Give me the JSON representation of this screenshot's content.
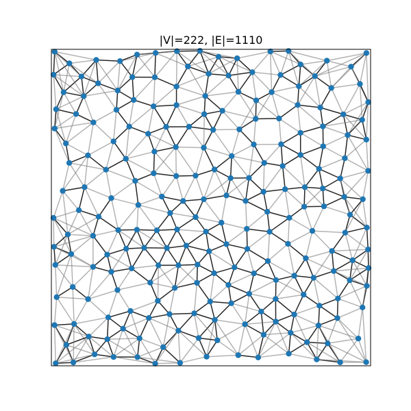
{
  "figure": {
    "title": "|V|=222, |E|=1110"
  },
  "colors": {
    "node_fill": "#1f77b4",
    "edge_dark": "#000000",
    "edge_light": "#808080",
    "frame": "#000000",
    "background": "#ffffff"
  },
  "graph_summary": {
    "vertex_count": 222,
    "edge_count": 1110
  }
}
